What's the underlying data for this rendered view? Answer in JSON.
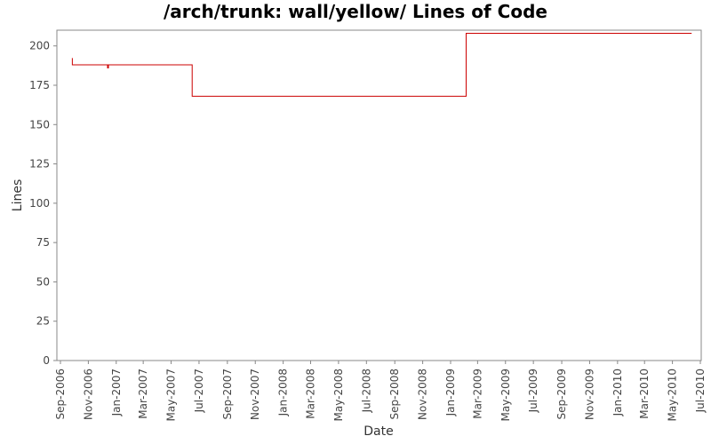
{
  "chart_data": {
    "type": "line",
    "title": "/arch/trunk: wall/yellow/ Lines of Code",
    "xlabel": "Date",
    "ylabel": "Lines",
    "ylim": [
      0,
      210
    ],
    "xlim": [
      "2006-09-01",
      "2010-07-01"
    ],
    "yticks": [
      0,
      25,
      50,
      75,
      100,
      125,
      150,
      175,
      200
    ],
    "xticks": [
      {
        "date": "2006-09-01",
        "label": "Sep-2006"
      },
      {
        "date": "2006-11-01",
        "label": "Nov-2006"
      },
      {
        "date": "2007-01-01",
        "label": "Jan-2007"
      },
      {
        "date": "2007-03-01",
        "label": "Mar-2007"
      },
      {
        "date": "2007-05-01",
        "label": "May-2007"
      },
      {
        "date": "2007-07-01",
        "label": "Jul-2007"
      },
      {
        "date": "2007-09-01",
        "label": "Sep-2007"
      },
      {
        "date": "2007-11-01",
        "label": "Nov-2007"
      },
      {
        "date": "2008-01-01",
        "label": "Jan-2008"
      },
      {
        "date": "2008-03-01",
        "label": "Mar-2008"
      },
      {
        "date": "2008-05-01",
        "label": "May-2008"
      },
      {
        "date": "2008-07-01",
        "label": "Jul-2008"
      },
      {
        "date": "2008-09-01",
        "label": "Sep-2008"
      },
      {
        "date": "2008-11-01",
        "label": "Nov-2008"
      },
      {
        "date": "2009-01-01",
        "label": "Jan-2009"
      },
      {
        "date": "2009-03-01",
        "label": "Mar-2009"
      },
      {
        "date": "2009-05-01",
        "label": "May-2009"
      },
      {
        "date": "2009-07-01",
        "label": "Jul-2009"
      },
      {
        "date": "2009-09-01",
        "label": "Sep-2009"
      },
      {
        "date": "2009-11-01",
        "label": "Nov-2009"
      },
      {
        "date": "2010-01-01",
        "label": "Jan-2010"
      },
      {
        "date": "2010-03-01",
        "label": "Mar-2010"
      },
      {
        "date": "2010-05-01",
        "label": "May-2010"
      },
      {
        "date": "2010-07-01",
        "label": "Jul-2010"
      }
    ],
    "grid": false,
    "legend": "none",
    "series": [
      {
        "color": "#cc0000",
        "step": true,
        "points": [
          {
            "x": "2006-09-26",
            "y": 192
          },
          {
            "x": "2006-09-27",
            "y": 188
          },
          {
            "x": "2006-12-12",
            "y": 188
          },
          {
            "x": "2006-12-13",
            "y": 186
          },
          {
            "x": "2006-12-15",
            "y": 188
          },
          {
            "x": "2007-06-15",
            "y": 188
          },
          {
            "x": "2007-06-16",
            "y": 168
          },
          {
            "x": "2009-02-03",
            "y": 168
          },
          {
            "x": "2009-02-04",
            "y": 208
          },
          {
            "x": "2010-06-12",
            "y": 208
          }
        ]
      }
    ]
  }
}
